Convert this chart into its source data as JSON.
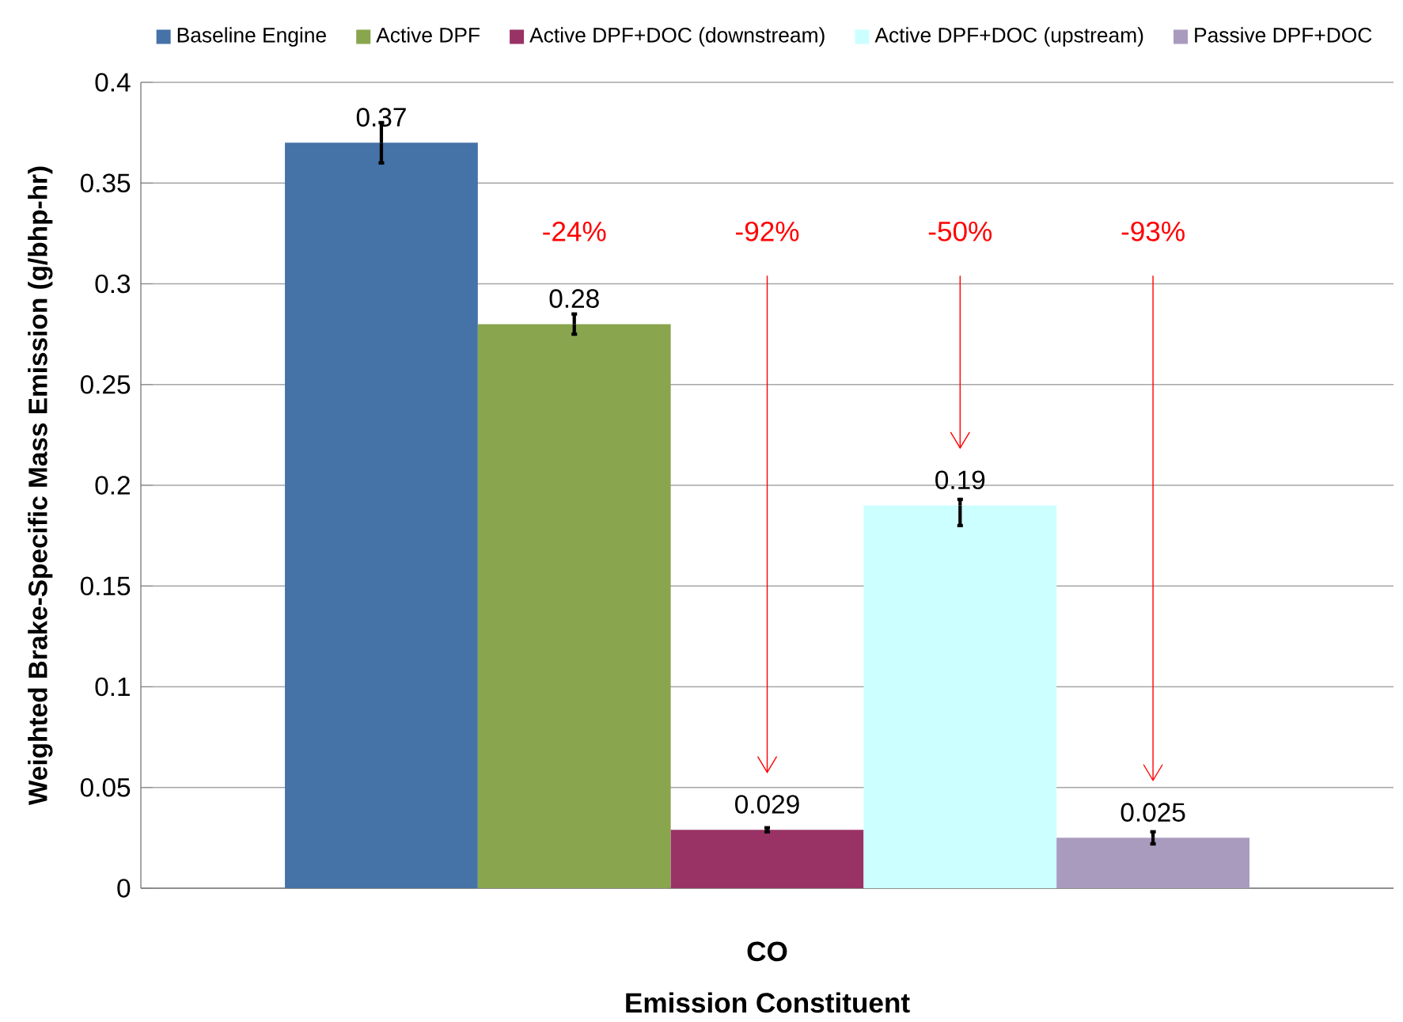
{
  "chart_data": {
    "type": "bar",
    "xlabel": "Emission Constituent",
    "ylabel": "Weighted Brake-Specific Mass Emission  (g/bhp-hr)",
    "categories": [
      "CO"
    ],
    "series": [
      {
        "name": "Baseline Engine",
        "color": "#4572a7",
        "values": [
          0.37
        ],
        "errors": [
          0.01
        ]
      },
      {
        "name": "Active DPF",
        "color": "#89a54e",
        "values": [
          0.28
        ],
        "errors": [
          0.005
        ]
      },
      {
        "name": "Active DPF+DOC (downstream)",
        "color": "#993366",
        "values": [
          0.029
        ],
        "errors": [
          0.001
        ]
      },
      {
        "name": "Active DPF+DOC (upstream)",
        "color": "#ccffff",
        "values": [
          0.19
        ],
        "errors": [
          [
            0.18,
            0.193
          ]
        ]
      },
      {
        "name": "Passive DPF+DOC",
        "color": "#a99bbd",
        "values": [
          0.025
        ],
        "errors": [
          0.003
        ]
      }
    ],
    "annotations": [
      "-24%",
      "-92%",
      "-50%",
      "-93%"
    ],
    "ylim": [
      0,
      0.4
    ],
    "yticks": [
      0,
      0.05,
      0.1,
      0.15,
      0.2,
      0.25,
      0.3,
      0.35,
      0.4
    ],
    "grid": "y",
    "legend": "top",
    "data_labels": true
  }
}
